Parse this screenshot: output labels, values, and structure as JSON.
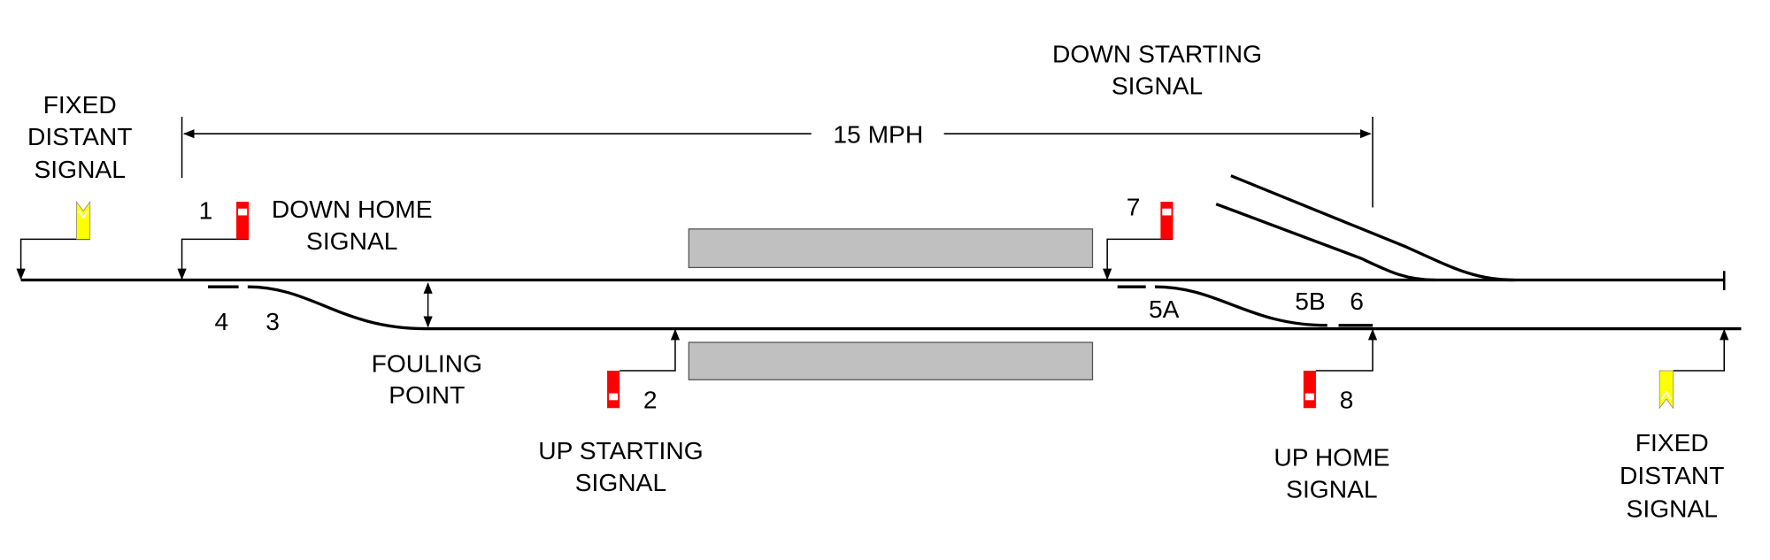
{
  "colors": {
    "stop_signal": "#ff0000",
    "distant_signal": "#ffff00",
    "platform": "#c0c0c0",
    "track": "#000000"
  },
  "speed_limit": "15 MPH",
  "labels": {
    "fixed_distant_left": [
      "FIXED",
      "DISTANT",
      "SIGNAL"
    ],
    "down_home": [
      "DOWN HOME",
      "SIGNAL"
    ],
    "down_starting": [
      "DOWN STARTING",
      "SIGNAL"
    ],
    "fouling_point": [
      "FOULING",
      "POINT"
    ],
    "up_starting": [
      "UP STARTING",
      "SIGNAL"
    ],
    "up_home": [
      "UP HOME",
      "SIGNAL"
    ],
    "fixed_distant_right": [
      "FIXED",
      "DISTANT",
      "SIGNAL"
    ]
  },
  "levers": {
    "l1": "1",
    "l2": "2",
    "l3": "3",
    "l4": "4",
    "l5a": "5A",
    "l5b": "5B",
    "l6": "6",
    "l7": "7",
    "l8": "8"
  }
}
